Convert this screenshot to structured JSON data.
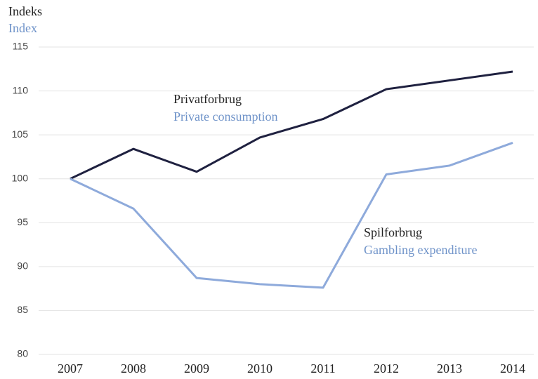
{
  "chart_data": {
    "type": "line",
    "ylabel": "Indeks",
    "ylabel_en": "Index",
    "categories": [
      "2007",
      "2008",
      "2009",
      "2010",
      "2011",
      "2012",
      "2013",
      "2014"
    ],
    "series": [
      {
        "name": "Privatforbrug",
        "name_en": "Private consumption",
        "color": "#1f2140",
        "values": [
          100,
          103.4,
          100.8,
          104.7,
          106.8,
          110.2,
          111.2,
          112.2
        ]
      },
      {
        "name": "Spilforbrug",
        "name_en": "Gambling expenditure",
        "color": "#8eaadb",
        "values": [
          100,
          96.6,
          88.7,
          88.0,
          87.6,
          100.5,
          101.5,
          104.1
        ]
      }
    ],
    "ylim": [
      80,
      115
    ],
    "yticks": [
      80,
      85,
      90,
      95,
      100,
      105,
      110,
      115
    ],
    "grid": true
  }
}
